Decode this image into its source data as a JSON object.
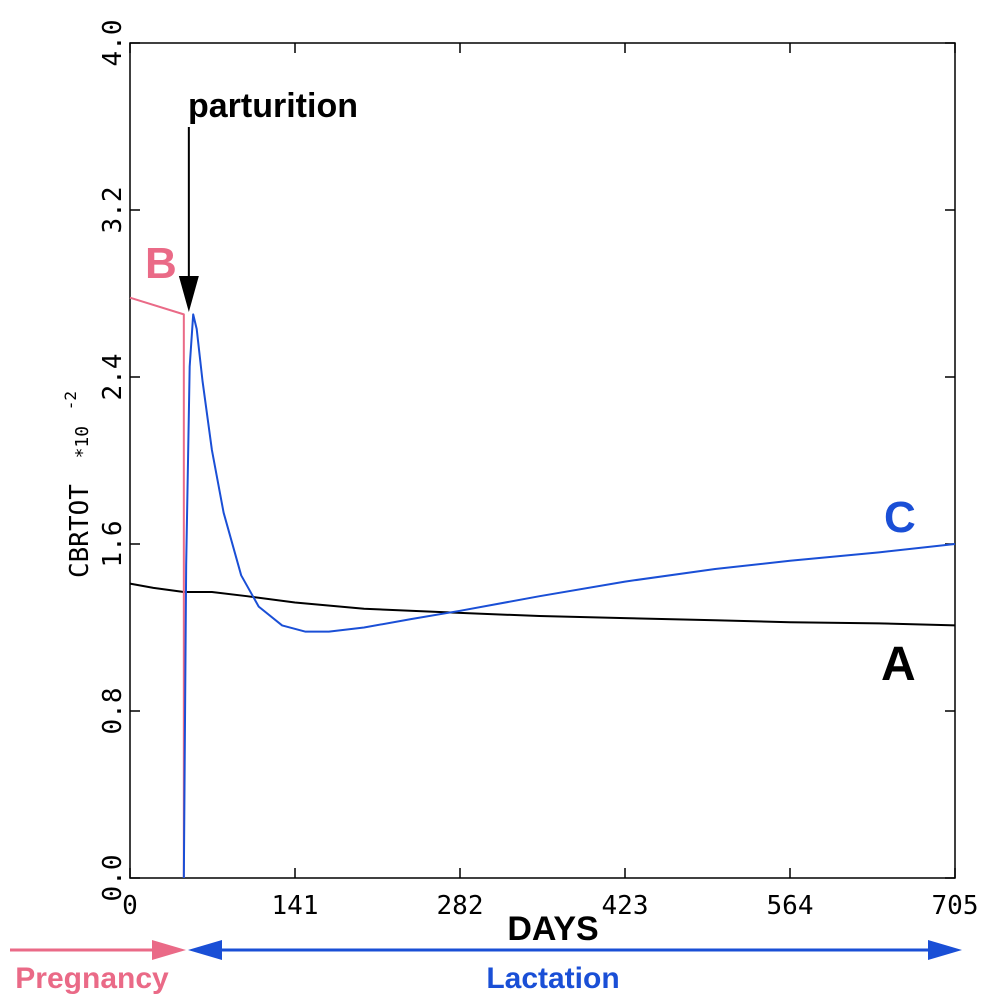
{
  "chart_data": {
    "type": "line",
    "xlabel": "DAYS",
    "ylabel": "CBRTOT",
    "ylabel_multiplier": "*10",
    "ylabel_exponent": "-2",
    "xlim": [
      0,
      705
    ],
    "ylim": [
      0.0,
      4.0
    ],
    "x_ticks": [
      "0",
      "141",
      "282",
      "423",
      "564",
      "705"
    ],
    "y_ticks": [
      "0.0",
      "0.8",
      "1.6",
      "2.4",
      "3.2",
      "4.0"
    ],
    "grid": false,
    "series": [
      {
        "name": "A",
        "color": "#000000",
        "x": [
          0,
          20,
          46,
          70,
          100,
          141,
          200,
          282,
          350,
          423,
          500,
          564,
          640,
          705
        ],
        "y": [
          1.41,
          1.39,
          1.37,
          1.37,
          1.35,
          1.32,
          1.29,
          1.27,
          1.255,
          1.245,
          1.235,
          1.225,
          1.22,
          1.21
        ]
      },
      {
        "name": "B",
        "color": "#ea6a87",
        "x": [
          0,
          46,
          46
        ],
        "y": [
          2.78,
          2.7,
          0.0
        ]
      },
      {
        "name": "C",
        "color": "#1a4fd6",
        "x": [
          46,
          48,
          51,
          54,
          57,
          62,
          70,
          80,
          95,
          110,
          130,
          150,
          170,
          200,
          240,
          282,
          350,
          423,
          500,
          564,
          640,
          705
        ],
        "y": [
          0.0,
          1.5,
          2.45,
          2.7,
          2.63,
          2.38,
          2.05,
          1.75,
          1.45,
          1.3,
          1.21,
          1.18,
          1.18,
          1.2,
          1.24,
          1.28,
          1.35,
          1.42,
          1.48,
          1.52,
          1.56,
          1.6
        ]
      }
    ],
    "annotations": {
      "parturition": "parturition",
      "parturition_day": 52,
      "pregnancy": "Pregnancy",
      "lactation": "Lactation"
    }
  }
}
